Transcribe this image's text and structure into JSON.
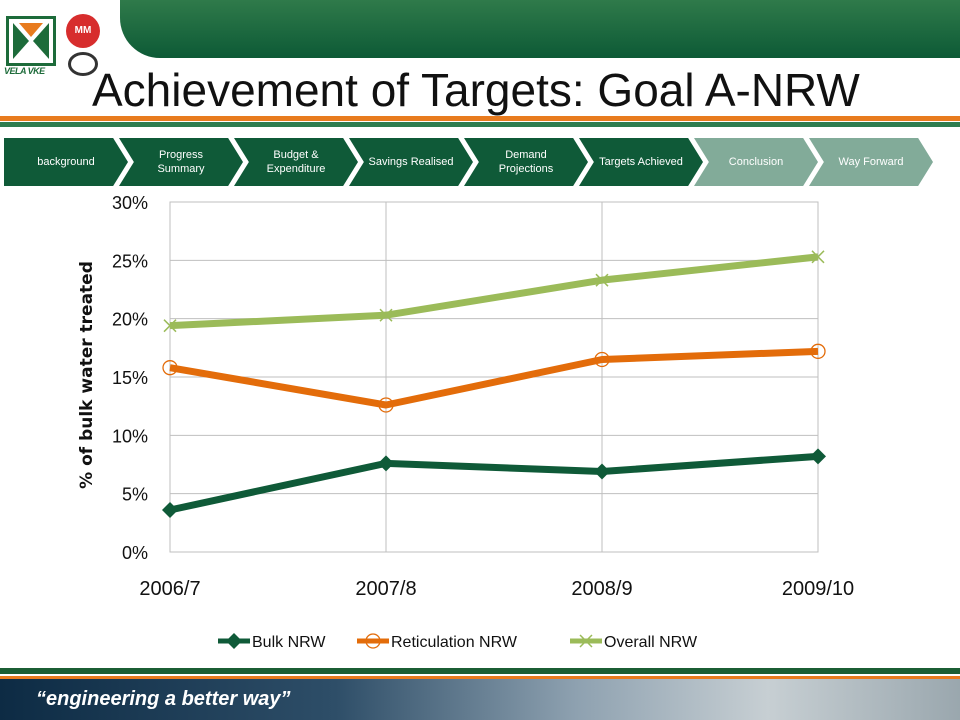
{
  "header": {
    "title": "Achievement of Targets: Goal A-NRW",
    "logo_left_text": "VELA VKE",
    "logo_mm_text": "MM"
  },
  "nav": {
    "items": [
      {
        "label": "background",
        "state": "active"
      },
      {
        "label": "Progress Summary",
        "state": "active"
      },
      {
        "label": "Budget & Expenditure",
        "state": "active"
      },
      {
        "label": "Savings Realised",
        "state": "active"
      },
      {
        "label": "Demand Projections",
        "state": "active"
      },
      {
        "label": "Targets Achieved",
        "state": "active"
      },
      {
        "label": "Conclusion",
        "state": "inactive"
      },
      {
        "label": "Way Forward",
        "state": "inactive"
      }
    ]
  },
  "colors": {
    "dark_green": "#0f5a38",
    "light_green": "#82ab99",
    "orange": "#e87b1e"
  },
  "chart_data": {
    "type": "line",
    "title": "",
    "xlabel": "",
    "ylabel": "% of bulk water treated",
    "categories": [
      "2006/7",
      "2007/8",
      "2008/9",
      "2009/10"
    ],
    "ylim": [
      0,
      30
    ],
    "yticks": [
      "0%",
      "5%",
      "10%",
      "15%",
      "20%",
      "25%",
      "30%"
    ],
    "grid": true,
    "legend_position": "bottom",
    "series": [
      {
        "name": "Bulk NRW",
        "values": [
          3.6,
          7.6,
          6.9,
          8.2
        ],
        "color": "#0f5a38",
        "marker": "diamond"
      },
      {
        "name": "Reticulation NRW",
        "values": [
          15.8,
          12.6,
          16.5,
          17.2
        ],
        "color": "#e36c0a",
        "marker": "circle"
      },
      {
        "name": "Overall NRW",
        "values": [
          19.4,
          20.3,
          23.3,
          25.3
        ],
        "color": "#9bbb59",
        "marker": "x"
      }
    ]
  },
  "footer": {
    "tagline": "“engineering a better way”"
  }
}
